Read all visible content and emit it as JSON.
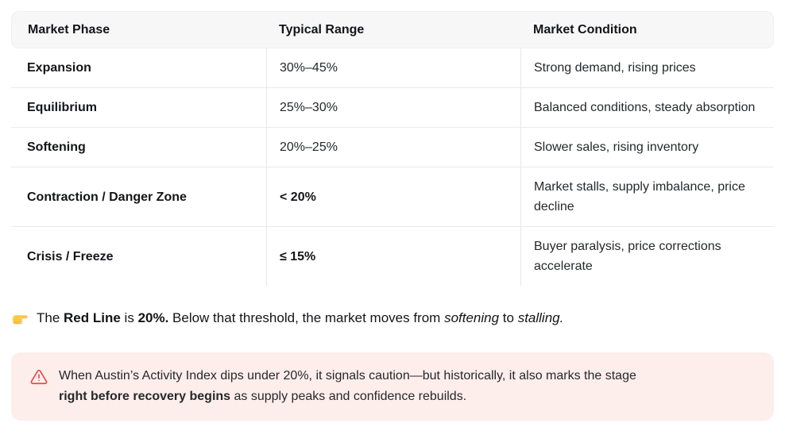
{
  "colors": {
    "header_bg": "#f7f7f8",
    "alert_bg": "#fdeeeb",
    "accent_red": "#e5484d"
  },
  "table": {
    "columns": [
      "Market Phase",
      "Typical Range",
      "Market Condition"
    ],
    "rows": [
      {
        "phase": "Expansion",
        "range": "30%–45%",
        "range_bold": false,
        "condition": "Strong demand, rising prices"
      },
      {
        "phase": "Equilibrium",
        "range": "25%–30%",
        "range_bold": false,
        "condition": "Balanced conditions, steady absorption"
      },
      {
        "phase": "Softening",
        "range": "20%–25%",
        "range_bold": false,
        "condition": "Slower sales, rising inventory"
      },
      {
        "phase": "Contraction / Danger Zone",
        "range": "< 20%",
        "range_bold": true,
        "condition": "Market stalls, supply imbalance, price decline"
      },
      {
        "phase": "Crisis / Freeze",
        "range": "≤ 15%",
        "range_bold": true,
        "condition": "Buyer paralysis, price corrections accelerate"
      }
    ]
  },
  "key_line": {
    "icon": "backhand-index-pointing-right",
    "segments": [
      {
        "text": "The ",
        "style": "normal"
      },
      {
        "text": "Red Line",
        "style": "bold"
      },
      {
        "text": " is ",
        "style": "normal"
      },
      {
        "text": "20%.",
        "style": "bold"
      },
      {
        "text": " Below that threshold, the market moves from ",
        "style": "normal"
      },
      {
        "text": "softening",
        "style": "italic"
      },
      {
        "text": " to ",
        "style": "normal"
      },
      {
        "text": "stalling.",
        "style": "italic"
      }
    ]
  },
  "alert": {
    "icon": "warning-triangle",
    "segments": [
      {
        "text": "When Austin’s Activity Index dips under 20%, it signals caution—but historically, it also marks the stage\n",
        "style": "normal"
      },
      {
        "text": "right before recovery begins",
        "style": "bold"
      },
      {
        "text": " as supply peaks and confidence rebuilds.",
        "style": "normal"
      }
    ]
  }
}
